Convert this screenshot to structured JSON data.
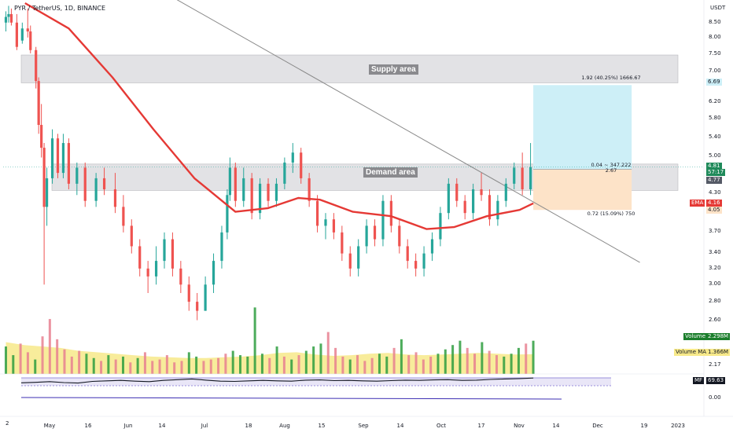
{
  "header": {
    "title": "PYR / TetherUS, 1D, BINANCE"
  },
  "axis": {
    "currency": "USDT",
    "price_ticks": [
      "8.50",
      "8.00",
      "7.50",
      "7.00",
      "6.20",
      "5.80",
      "5.40",
      "5.00",
      "4.30",
      "3.70",
      "3.40",
      "3.20",
      "3.00",
      "2.80",
      "2.60",
      "2.17",
      "0.00"
    ],
    "x_ticks": [
      "May",
      "16",
      "Jun",
      "14",
      "Jul",
      "18",
      "Aug",
      "15",
      "Sep",
      "14",
      "Oct",
      "17",
      "Nov",
      "14",
      "Dec",
      "19",
      "2023"
    ],
    "corner_label": "2"
  },
  "zones": {
    "supply_label": "Supply area",
    "demand_label": "Demand area"
  },
  "position": {
    "profit_label": "1.92 (40.25%) 1666.67",
    "entry_label_1": "0.04 ~ 347.222",
    "entry_label_2": "2.67",
    "loss_label": "0.72 (15.09%) 750"
  },
  "badges": {
    "target": "6.69",
    "last_price": "4.81",
    "countdown": "57:17",
    "entry": "4.77",
    "ema_name": "EMA",
    "ema_value": "4.16",
    "stop": "4.05",
    "volume_name": "Volume",
    "volume_value": "2.298M",
    "volume_ma_name": "Volume MA",
    "volume_ma_value": "1.366M",
    "mf_name": "MF",
    "mf_value": "69.63"
  },
  "colors": {
    "up": "#26a69a",
    "down": "#ef5350",
    "ema": "#e53935",
    "profit_zone": "#cdeff7",
    "loss_zone": "#fde3c8",
    "zone_gray": "#d8d8dc",
    "trendline": "#8a8a8a",
    "volume_ma": "#f7e98a"
  },
  "chart_data": {
    "type": "candlestick",
    "title": "PYR / TetherUS, 1D, BINANCE",
    "x_range": [
      "2022-04-26",
      "2023-01-06"
    ],
    "y_scale": "log",
    "y_range": [
      2.5,
      9.3
    ],
    "ohlc": [
      {
        "x": "2022-04-27",
        "o": 8.6,
        "h": 9.0,
        "l": 8.3,
        "c": 8.8
      },
      {
        "x": "2022-04-28",
        "o": 8.8,
        "h": 9.2,
        "l": 8.6,
        "c": 8.9
      },
      {
        "x": "2022-04-29",
        "o": 8.9,
        "h": 9.1,
        "l": 8.5,
        "c": 8.6
      },
      {
        "x": "2022-05-01",
        "o": 8.6,
        "h": 8.9,
        "l": 7.7,
        "c": 7.8
      },
      {
        "x": "2022-05-03",
        "o": 8.0,
        "h": 8.6,
        "l": 7.9,
        "c": 8.4
      },
      {
        "x": "2022-05-05",
        "o": 8.4,
        "h": 9.1,
        "l": 8.1,
        "c": 8.3
      },
      {
        "x": "2022-05-06",
        "o": 8.3,
        "h": 8.5,
        "l": 7.6,
        "c": 7.7
      },
      {
        "x": "2022-05-08",
        "o": 7.7,
        "h": 7.8,
        "l": 6.6,
        "c": 6.8
      },
      {
        "x": "2022-05-09",
        "o": 6.8,
        "h": 6.9,
        "l": 5.5,
        "c": 5.7
      },
      {
        "x": "2022-05-10",
        "o": 5.7,
        "h": 6.2,
        "l": 5.0,
        "c": 5.2
      },
      {
        "x": "2022-05-11",
        "o": 5.2,
        "h": 5.3,
        "l": 3.0,
        "c": 4.1
      },
      {
        "x": "2022-05-12",
        "o": 4.1,
        "h": 4.8,
        "l": 3.8,
        "c": 4.6
      },
      {
        "x": "2022-05-14",
        "o": 4.6,
        "h": 5.6,
        "l": 4.5,
        "c": 5.4
      },
      {
        "x": "2022-05-16",
        "o": 5.4,
        "h": 5.5,
        "l": 4.6,
        "c": 4.7
      },
      {
        "x": "2022-05-18",
        "o": 4.7,
        "h": 5.5,
        "l": 4.6,
        "c": 5.3
      },
      {
        "x": "2022-05-20",
        "o": 5.3,
        "h": 5.4,
        "l": 4.4,
        "c": 4.5
      },
      {
        "x": "2022-05-23",
        "o": 4.5,
        "h": 4.9,
        "l": 4.3,
        "c": 4.8
      },
      {
        "x": "2022-05-26",
        "o": 4.8,
        "h": 4.9,
        "l": 4.1,
        "c": 4.2
      },
      {
        "x": "2022-05-30",
        "o": 4.2,
        "h": 4.7,
        "l": 4.1,
        "c": 4.6
      },
      {
        "x": "2022-06-02",
        "o": 4.6,
        "h": 4.8,
        "l": 4.3,
        "c": 4.4
      },
      {
        "x": "2022-06-06",
        "o": 4.4,
        "h": 4.7,
        "l": 4.0,
        "c": 4.1
      },
      {
        "x": "2022-06-09",
        "o": 4.1,
        "h": 4.3,
        "l": 3.7,
        "c": 3.8
      },
      {
        "x": "2022-06-12",
        "o": 3.8,
        "h": 3.9,
        "l": 3.4,
        "c": 3.5
      },
      {
        "x": "2022-06-15",
        "o": 3.5,
        "h": 3.6,
        "l": 3.1,
        "c": 3.2
      },
      {
        "x": "2022-06-18",
        "o": 3.2,
        "h": 3.3,
        "l": 2.9,
        "c": 3.1
      },
      {
        "x": "2022-06-21",
        "o": 3.1,
        "h": 3.5,
        "l": 3.0,
        "c": 3.3
      },
      {
        "x": "2022-06-24",
        "o": 3.3,
        "h": 3.7,
        "l": 3.2,
        "c": 3.6
      },
      {
        "x": "2022-06-27",
        "o": 3.6,
        "h": 3.7,
        "l": 3.1,
        "c": 3.2
      },
      {
        "x": "2022-06-30",
        "o": 3.2,
        "h": 3.3,
        "l": 2.9,
        "c": 3.0
      },
      {
        "x": "2022-07-03",
        "o": 3.0,
        "h": 3.1,
        "l": 2.7,
        "c": 2.8
      },
      {
        "x": "2022-07-06",
        "o": 2.8,
        "h": 2.9,
        "l": 2.6,
        "c": 2.7
      },
      {
        "x": "2022-07-09",
        "o": 2.7,
        "h": 3.1,
        "l": 2.7,
        "c": 3.0
      },
      {
        "x": "2022-07-12",
        "o": 3.0,
        "h": 3.4,
        "l": 2.9,
        "c": 3.3
      },
      {
        "x": "2022-07-15",
        "o": 3.3,
        "h": 3.8,
        "l": 3.2,
        "c": 3.7
      },
      {
        "x": "2022-07-17",
        "o": 3.7,
        "h": 4.4,
        "l": 3.6,
        "c": 4.3
      },
      {
        "x": "2022-07-18",
        "o": 4.3,
        "h": 5.0,
        "l": 4.2,
        "c": 4.8
      },
      {
        "x": "2022-07-20",
        "o": 4.8,
        "h": 4.9,
        "l": 4.1,
        "c": 4.2
      },
      {
        "x": "2022-07-23",
        "o": 4.2,
        "h": 4.8,
        "l": 4.1,
        "c": 4.6
      },
      {
        "x": "2022-07-26",
        "o": 4.6,
        "h": 4.7,
        "l": 3.9,
        "c": 4.0
      },
      {
        "x": "2022-07-29",
        "o": 4.0,
        "h": 4.6,
        "l": 3.9,
        "c": 4.5
      },
      {
        "x": "2022-08-01",
        "o": 4.5,
        "h": 4.6,
        "l": 4.1,
        "c": 4.2
      },
      {
        "x": "2022-08-04",
        "o": 4.2,
        "h": 4.6,
        "l": 4.1,
        "c": 4.5
      },
      {
        "x": "2022-08-07",
        "o": 4.5,
        "h": 5.0,
        "l": 4.4,
        "c": 4.9
      },
      {
        "x": "2022-08-10",
        "o": 4.9,
        "h": 5.3,
        "l": 4.7,
        "c": 5.1
      },
      {
        "x": "2022-08-13",
        "o": 5.1,
        "h": 5.2,
        "l": 4.5,
        "c": 4.6
      },
      {
        "x": "2022-08-16",
        "o": 4.6,
        "h": 4.7,
        "l": 4.1,
        "c": 4.2
      },
      {
        "x": "2022-08-19",
        "o": 4.2,
        "h": 4.3,
        "l": 3.7,
        "c": 3.8
      },
      {
        "x": "2022-08-22",
        "o": 3.8,
        "h": 4.0,
        "l": 3.6,
        "c": 3.9
      },
      {
        "x": "2022-08-25",
        "o": 3.9,
        "h": 4.0,
        "l": 3.6,
        "c": 3.7
      },
      {
        "x": "2022-08-28",
        "o": 3.7,
        "h": 3.8,
        "l": 3.3,
        "c": 3.4
      },
      {
        "x": "2022-08-31",
        "o": 3.4,
        "h": 3.5,
        "l": 3.1,
        "c": 3.2
      },
      {
        "x": "2022-09-03",
        "o": 3.2,
        "h": 3.6,
        "l": 3.1,
        "c": 3.5
      },
      {
        "x": "2022-09-06",
        "o": 3.5,
        "h": 3.9,
        "l": 3.4,
        "c": 3.8
      },
      {
        "x": "2022-09-09",
        "o": 3.8,
        "h": 3.9,
        "l": 3.5,
        "c": 3.6
      },
      {
        "x": "2022-09-12",
        "o": 3.6,
        "h": 4.3,
        "l": 3.5,
        "c": 4.2
      },
      {
        "x": "2022-09-15",
        "o": 4.2,
        "h": 4.3,
        "l": 3.7,
        "c": 3.8
      },
      {
        "x": "2022-09-18",
        "o": 3.8,
        "h": 3.9,
        "l": 3.4,
        "c": 3.5
      },
      {
        "x": "2022-09-21",
        "o": 3.5,
        "h": 3.6,
        "l": 3.2,
        "c": 3.3
      },
      {
        "x": "2022-09-24",
        "o": 3.3,
        "h": 3.4,
        "l": 3.1,
        "c": 3.2
      },
      {
        "x": "2022-09-27",
        "o": 3.2,
        "h": 3.5,
        "l": 3.1,
        "c": 3.4
      },
      {
        "x": "2022-09-30",
        "o": 3.4,
        "h": 3.7,
        "l": 3.3,
        "c": 3.6
      },
      {
        "x": "2022-10-03",
        "o": 3.6,
        "h": 4.1,
        "l": 3.5,
        "c": 4.0
      },
      {
        "x": "2022-10-06",
        "o": 4.0,
        "h": 4.6,
        "l": 3.9,
        "c": 4.5
      },
      {
        "x": "2022-10-09",
        "o": 4.5,
        "h": 4.6,
        "l": 4.1,
        "c": 4.2
      },
      {
        "x": "2022-10-12",
        "o": 4.2,
        "h": 4.3,
        "l": 3.9,
        "c": 4.0
      },
      {
        "x": "2022-10-15",
        "o": 4.0,
        "h": 4.5,
        "l": 3.9,
        "c": 4.4
      },
      {
        "x": "2022-10-18",
        "o": 4.4,
        "h": 4.7,
        "l": 4.2,
        "c": 4.3
      },
      {
        "x": "2022-10-21",
        "o": 4.3,
        "h": 4.4,
        "l": 3.8,
        "c": 3.9
      },
      {
        "x": "2022-10-24",
        "o": 3.9,
        "h": 4.3,
        "l": 3.8,
        "c": 4.2
      },
      {
        "x": "2022-10-27",
        "o": 4.2,
        "h": 4.6,
        "l": 4.1,
        "c": 4.5
      },
      {
        "x": "2022-10-30",
        "o": 4.5,
        "h": 4.9,
        "l": 4.4,
        "c": 4.8
      },
      {
        "x": "2022-11-02",
        "o": 4.8,
        "h": 5.1,
        "l": 4.3,
        "c": 4.4
      },
      {
        "x": "2022-11-05",
        "o": 4.4,
        "h": 5.3,
        "l": 4.3,
        "c": 4.81
      }
    ],
    "ema": {
      "name": "EMA",
      "points": [
        {
          "x": "2022-05-04",
          "y": 9.3
        },
        {
          "x": "2022-05-20",
          "y": 8.4
        },
        {
          "x": "2022-06-05",
          "y": 6.9
        },
        {
          "x": "2022-06-20",
          "y": 5.6
        },
        {
          "x": "2022-07-05",
          "y": 4.6
        },
        {
          "x": "2022-07-20",
          "y": 4.02
        },
        {
          "x": "2022-08-01",
          "y": 4.08
        },
        {
          "x": "2022-08-12",
          "y": 4.25
        },
        {
          "x": "2022-08-20",
          "y": 4.22
        },
        {
          "x": "2022-09-01",
          "y": 4.02
        },
        {
          "x": "2022-09-15",
          "y": 3.95
        },
        {
          "x": "2022-09-28",
          "y": 3.75
        },
        {
          "x": "2022-10-08",
          "y": 3.78
        },
        {
          "x": "2022-10-20",
          "y": 3.95
        },
        {
          "x": "2022-11-01",
          "y": 4.05
        },
        {
          "x": "2022-11-06",
          "y": 4.16
        }
      ]
    },
    "trendline": [
      {
        "x": "2022-06-01",
        "y": 11.2
      },
      {
        "x": "2022-12-15",
        "y": 3.28
      }
    ],
    "supply_zone": [
      6.75,
      7.55
    ],
    "demand_zone": [
      4.38,
      4.87
    ],
    "position": {
      "start": "2022-11-06",
      "end": "2022-12-12",
      "entry": 4.77,
      "target": 6.69,
      "stop": 4.05
    },
    "volume": {
      "values_m": [
        1.9,
        1.3,
        2.1,
        1.5,
        1.0,
        2.6,
        3.8,
        2.4,
        1.7,
        1.2,
        1.6,
        1.4,
        1.1,
        0.9,
        1.3,
        1.0,
        1.2,
        0.8,
        1.1,
        1.5,
        0.9,
        1.0,
        1.3,
        0.8,
        0.9,
        1.5,
        1.2,
        0.9,
        1.0,
        1.1,
        1.4,
        1.6,
        1.3,
        1.2,
        4.6,
        1.4,
        1.1,
        1.9,
        1.2,
        1.0,
        1.3,
        1.6,
        1.9,
        2.1,
        2.9,
        1.8,
        1.2,
        1.0,
        1.3,
        0.9,
        1.1,
        1.4,
        1.2,
        1.8,
        2.4,
        1.3,
        1.5,
        1.0,
        1.2,
        1.4,
        1.7,
        2.0,
        2.3,
        1.8,
        1.4,
        2.2,
        1.6,
        1.3,
        1.2,
        1.4,
        1.8,
        2.1,
        2.298
      ],
      "ma_m": [
        2.2,
        2.0,
        1.9,
        1.8,
        1.6,
        1.5,
        1.4,
        1.3,
        1.2,
        1.15,
        1.1,
        1.1,
        1.15,
        1.2,
        1.3,
        1.45,
        1.5,
        1.35,
        1.25,
        1.3,
        1.4,
        1.45,
        1.35,
        1.3,
        1.35,
        1.4,
        1.45,
        1.4,
        1.35,
        1.366
      ]
    },
    "money_flow": {
      "name": "MF",
      "values": [
        50,
        52,
        55,
        51,
        49,
        56,
        58,
        60,
        57,
        55,
        60,
        63,
        66,
        61,
        57,
        56,
        58,
        60,
        58,
        57,
        61,
        62,
        59,
        60,
        58,
        57,
        59,
        61,
        60,
        62,
        63,
        60,
        61,
        64,
        66,
        67,
        69.63
      ]
    }
  }
}
